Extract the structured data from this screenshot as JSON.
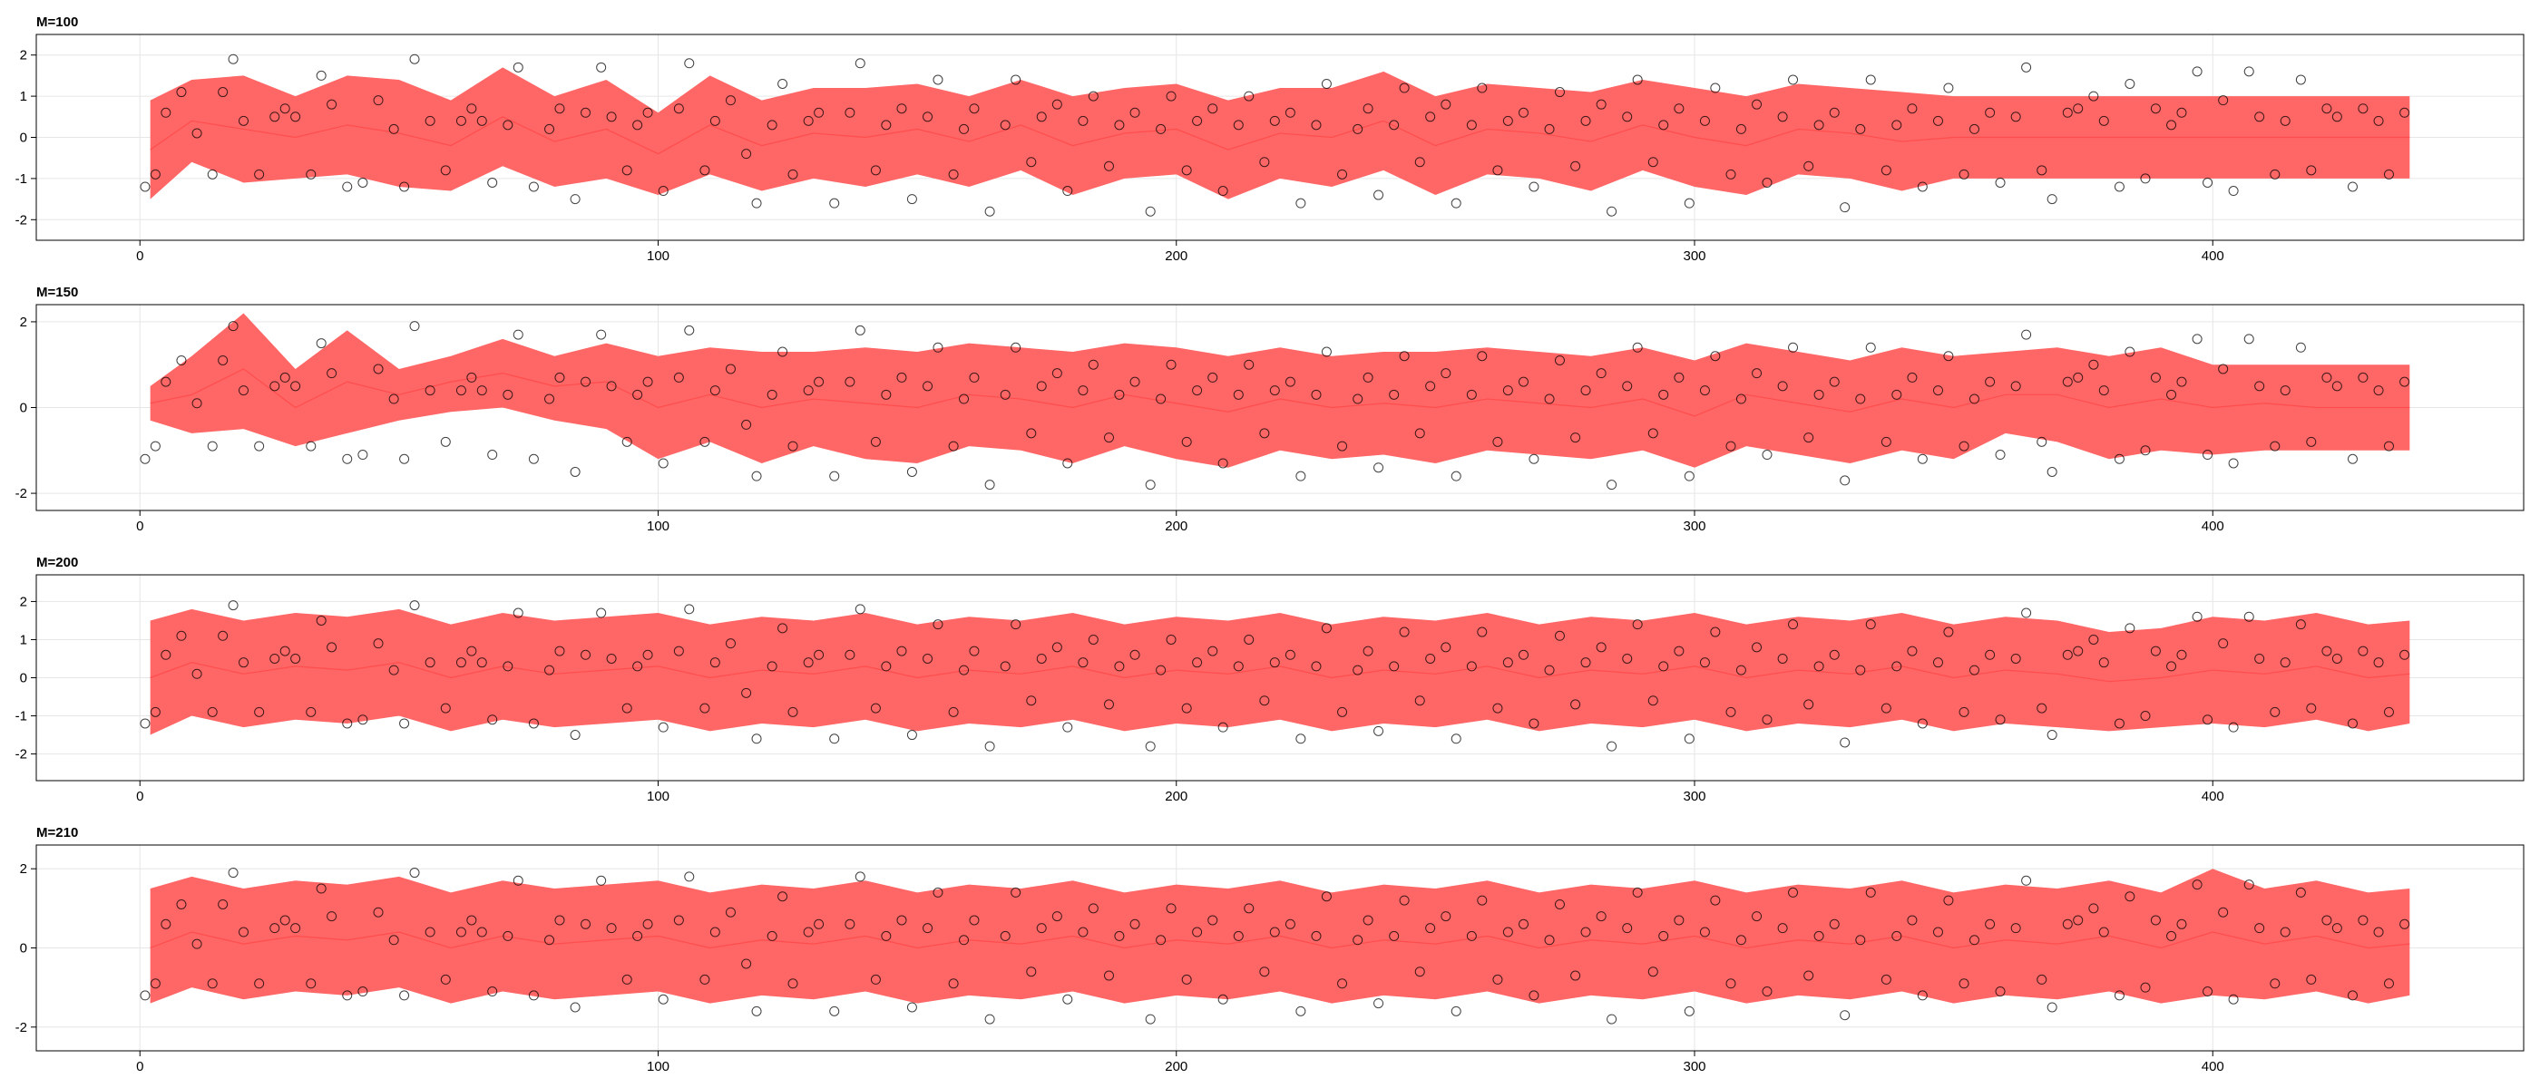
{
  "colors": {
    "band": "#ff6666",
    "points": "#000000",
    "grid": "#e6e6e6",
    "frame": "#000000"
  },
  "chart_data": [
    {
      "type": "area",
      "title": "M=100",
      "xlim": [
        -20,
        460
      ],
      "ylim": [
        -2.5,
        2.5
      ],
      "xticks": [
        0,
        100,
        200,
        300,
        400
      ],
      "xtick_labels": [
        "0",
        "100",
        "200",
        "300",
        "400"
      ],
      "yticks": [
        -2,
        -1,
        0,
        1,
        2
      ],
      "ytick_labels": [
        "-2",
        "-1",
        "0",
        "1",
        "2"
      ],
      "grid": true,
      "band": {
        "x": [
          2,
          10,
          20,
          30,
          40,
          50,
          60,
          70,
          80,
          90,
          100,
          110,
          120,
          130,
          140,
          150,
          160,
          170,
          180,
          190,
          200,
          210,
          220,
          230,
          240,
          250,
          260,
          270,
          280,
          290,
          300,
          310,
          320,
          330,
          340,
          350,
          360,
          370,
          380,
          390,
          400,
          410,
          420,
          430,
          438
        ],
        "center": [
          -0.3,
          0.4,
          0.2,
          0.0,
          0.3,
          0.1,
          -0.2,
          0.5,
          -0.1,
          0.2,
          -0.4,
          0.3,
          -0.2,
          0.1,
          0.0,
          0.2,
          -0.1,
          0.3,
          -0.2,
          0.1,
          0.2,
          -0.3,
          0.1,
          0.0,
          0.4,
          -0.2,
          0.2,
          0.1,
          -0.1,
          0.3,
          0.0,
          -0.2,
          0.2,
          0.1,
          -0.1,
          0.0,
          0.0,
          0.0,
          0.0,
          0.0,
          0.0,
          0.0,
          0.0,
          0.0,
          0.0
        ],
        "lower": [
          -1.5,
          -0.6,
          -1.1,
          -1.0,
          -0.9,
          -1.2,
          -1.3,
          -0.7,
          -1.2,
          -1.0,
          -1.4,
          -0.9,
          -1.3,
          -1.0,
          -1.2,
          -0.9,
          -1.2,
          -0.8,
          -1.4,
          -1.0,
          -0.9,
          -1.5,
          -1.0,
          -1.2,
          -0.8,
          -1.4,
          -0.9,
          -1.0,
          -1.3,
          -0.8,
          -1.2,
          -1.4,
          -0.9,
          -1.0,
          -1.3,
          -1.0,
          -1.0,
          -1.0,
          -1.0,
          -1.0,
          -1.0,
          -1.0,
          -1.0,
          -1.0,
          -1.0
        ],
        "upper": [
          0.9,
          1.4,
          1.5,
          1.0,
          1.5,
          1.4,
          0.9,
          1.7,
          1.0,
          1.4,
          0.6,
          1.5,
          0.9,
          1.2,
          1.2,
          1.3,
          1.0,
          1.4,
          1.0,
          1.2,
          1.3,
          0.9,
          1.2,
          1.2,
          1.6,
          1.0,
          1.3,
          1.2,
          1.1,
          1.4,
          1.2,
          1.0,
          1.3,
          1.2,
          1.1,
          1.0,
          1.0,
          1.0,
          1.0,
          1.0,
          1.0,
          1.0,
          1.0,
          1.0,
          1.0
        ]
      }
    },
    {
      "type": "area",
      "title": "M=150",
      "xlim": [
        -20,
        460
      ],
      "ylim": [
        -2.4,
        2.4
      ],
      "xticks": [
        0,
        100,
        200,
        300,
        400
      ],
      "xtick_labels": [
        "0",
        "100",
        "200",
        "300",
        "400"
      ],
      "yticks": [
        -2,
        0,
        2
      ],
      "ytick_labels": [
        "-2",
        "0",
        "2"
      ],
      "grid": true,
      "band": {
        "x": [
          2,
          10,
          20,
          30,
          40,
          50,
          60,
          70,
          80,
          90,
          100,
          110,
          120,
          130,
          140,
          150,
          160,
          170,
          180,
          190,
          200,
          210,
          220,
          230,
          240,
          250,
          260,
          270,
          280,
          290,
          300,
          310,
          320,
          330,
          340,
          350,
          360,
          370,
          380,
          390,
          400,
          410,
          420,
          430,
          438
        ],
        "center": [
          0.1,
          0.3,
          0.9,
          0.0,
          0.6,
          0.3,
          0.6,
          0.8,
          0.5,
          0.6,
          0.0,
          0.3,
          0.0,
          0.2,
          0.1,
          0.0,
          0.3,
          0.2,
          0.0,
          0.3,
          0.1,
          -0.1,
          0.2,
          0.0,
          0.1,
          0.0,
          0.2,
          0.1,
          0.0,
          0.2,
          -0.2,
          0.3,
          0.1,
          -0.1,
          0.2,
          0.0,
          0.3,
          0.3,
          0.0,
          0.2,
          0.0,
          0.1,
          0.0,
          0.0,
          0.0
        ],
        "lower": [
          -0.3,
          -0.6,
          -0.5,
          -0.9,
          -0.6,
          -0.3,
          -0.1,
          0.0,
          -0.3,
          -0.5,
          -1.2,
          -0.8,
          -1.3,
          -0.9,
          -1.2,
          -1.3,
          -0.9,
          -1.0,
          -1.3,
          -0.9,
          -1.2,
          -1.4,
          -1.0,
          -1.2,
          -1.1,
          -1.3,
          -1.0,
          -1.1,
          -1.2,
          -1.0,
          -1.4,
          -0.9,
          -1.1,
          -1.3,
          -1.0,
          -1.2,
          -0.6,
          -0.8,
          -1.2,
          -1.0,
          -1.1,
          -1.0,
          -1.0,
          -1.0,
          -1.0
        ],
        "upper": [
          0.5,
          1.2,
          2.2,
          0.9,
          1.8,
          0.9,
          1.2,
          1.6,
          1.2,
          1.5,
          1.2,
          1.4,
          1.3,
          1.3,
          1.4,
          1.3,
          1.5,
          1.4,
          1.3,
          1.5,
          1.4,
          1.2,
          1.4,
          1.2,
          1.3,
          1.3,
          1.4,
          1.3,
          1.2,
          1.4,
          1.1,
          1.5,
          1.3,
          1.1,
          1.4,
          1.2,
          1.3,
          1.4,
          1.2,
          1.4,
          1.0,
          1.0,
          1.0,
          1.0,
          1.0
        ]
      }
    },
    {
      "type": "area",
      "title": "M=200",
      "xlim": [
        -20,
        460
      ],
      "ylim": [
        -2.7,
        2.7
      ],
      "xticks": [
        0,
        100,
        200,
        300,
        400
      ],
      "xtick_labels": [
        "0",
        "100",
        "200",
        "300",
        "400"
      ],
      "yticks": [
        -2,
        -1,
        0,
        1,
        2
      ],
      "ytick_labels": [
        "-2",
        "-1",
        "0",
        "1",
        "2"
      ],
      "grid": true,
      "band": {
        "x": [
          2,
          10,
          20,
          30,
          40,
          50,
          60,
          70,
          80,
          90,
          100,
          110,
          120,
          130,
          140,
          150,
          160,
          170,
          180,
          190,
          200,
          210,
          220,
          230,
          240,
          250,
          260,
          270,
          280,
          290,
          300,
          310,
          320,
          330,
          340,
          350,
          360,
          370,
          380,
          390,
          400,
          410,
          420,
          430,
          438
        ],
        "center": [
          0.0,
          0.4,
          0.1,
          0.3,
          0.2,
          0.4,
          0.0,
          0.3,
          0.1,
          0.2,
          0.3,
          0.0,
          0.2,
          0.1,
          0.3,
          0.0,
          0.2,
          0.1,
          0.3,
          0.0,
          0.2,
          0.1,
          0.3,
          0.0,
          0.2,
          0.1,
          0.3,
          0.0,
          0.2,
          0.1,
          0.3,
          0.0,
          0.2,
          0.1,
          0.3,
          0.0,
          0.2,
          0.1,
          -0.1,
          0.0,
          0.2,
          0.1,
          0.3,
          0.0,
          0.1
        ],
        "lower": [
          -1.5,
          -1.0,
          -1.3,
          -1.1,
          -1.2,
          -1.0,
          -1.4,
          -1.1,
          -1.3,
          -1.2,
          -1.1,
          -1.4,
          -1.2,
          -1.3,
          -1.1,
          -1.4,
          -1.2,
          -1.3,
          -1.1,
          -1.4,
          -1.2,
          -1.3,
          -1.1,
          -1.4,
          -1.2,
          -1.3,
          -1.1,
          -1.4,
          -1.2,
          -1.3,
          -1.1,
          -1.4,
          -1.2,
          -1.3,
          -1.1,
          -1.4,
          -1.2,
          -1.3,
          -1.4,
          -1.3,
          -1.2,
          -1.3,
          -1.1,
          -1.4,
          -1.2
        ],
        "upper": [
          1.5,
          1.8,
          1.5,
          1.7,
          1.6,
          1.8,
          1.4,
          1.7,
          1.5,
          1.6,
          1.7,
          1.4,
          1.6,
          1.5,
          1.7,
          1.4,
          1.6,
          1.5,
          1.7,
          1.4,
          1.6,
          1.5,
          1.7,
          1.4,
          1.6,
          1.5,
          1.7,
          1.4,
          1.6,
          1.5,
          1.7,
          1.4,
          1.6,
          1.5,
          1.7,
          1.4,
          1.6,
          1.5,
          1.2,
          1.3,
          1.6,
          1.5,
          1.7,
          1.4,
          1.5
        ]
      }
    },
    {
      "type": "area",
      "title": "M=210",
      "xlim": [
        -20,
        460
      ],
      "ylim": [
        -2.6,
        2.6
      ],
      "xticks": [
        0,
        100,
        200,
        300,
        400
      ],
      "xtick_labels": [
        "0",
        "100",
        "200",
        "300",
        "400"
      ],
      "yticks": [
        -2,
        0,
        2
      ],
      "ytick_labels": [
        "-2",
        "0",
        "2"
      ],
      "grid": true,
      "band": {
        "x": [
          2,
          10,
          20,
          30,
          40,
          50,
          60,
          70,
          80,
          90,
          100,
          110,
          120,
          130,
          140,
          150,
          160,
          170,
          180,
          190,
          200,
          210,
          220,
          230,
          240,
          250,
          260,
          270,
          280,
          290,
          300,
          310,
          320,
          330,
          340,
          350,
          360,
          370,
          380,
          390,
          400,
          410,
          420,
          430,
          438
        ],
        "center": [
          0.0,
          0.4,
          0.1,
          0.3,
          0.2,
          0.4,
          0.0,
          0.3,
          0.1,
          0.2,
          0.3,
          0.0,
          0.2,
          0.1,
          0.3,
          0.0,
          0.2,
          0.1,
          0.3,
          0.0,
          0.2,
          0.1,
          0.3,
          0.0,
          0.2,
          0.1,
          0.3,
          0.0,
          0.2,
          0.1,
          0.3,
          0.0,
          0.2,
          0.1,
          0.3,
          0.0,
          0.2,
          0.1,
          0.3,
          0.0,
          0.4,
          0.1,
          0.3,
          0.0,
          0.1
        ],
        "lower": [
          -1.4,
          -1.0,
          -1.3,
          -1.1,
          -1.2,
          -1.0,
          -1.4,
          -1.1,
          -1.3,
          -1.2,
          -1.1,
          -1.4,
          -1.2,
          -1.3,
          -1.1,
          -1.4,
          -1.2,
          -1.3,
          -1.1,
          -1.4,
          -1.2,
          -1.3,
          -1.1,
          -1.4,
          -1.2,
          -1.3,
          -1.1,
          -1.4,
          -1.2,
          -1.3,
          -1.1,
          -1.4,
          -1.2,
          -1.3,
          -1.1,
          -1.4,
          -1.2,
          -1.3,
          -1.1,
          -1.4,
          -1.2,
          -1.3,
          -1.1,
          -1.4,
          -1.2
        ],
        "upper": [
          1.5,
          1.8,
          1.5,
          1.7,
          1.6,
          1.8,
          1.4,
          1.7,
          1.5,
          1.6,
          1.7,
          1.4,
          1.6,
          1.5,
          1.7,
          1.4,
          1.6,
          1.5,
          1.7,
          1.4,
          1.6,
          1.5,
          1.7,
          1.4,
          1.6,
          1.5,
          1.7,
          1.4,
          1.6,
          1.5,
          1.7,
          1.4,
          1.6,
          1.5,
          1.7,
          1.4,
          1.6,
          1.5,
          1.7,
          1.4,
          2.0,
          1.5,
          1.7,
          1.4,
          1.5
        ]
      }
    }
  ],
  "observations": {
    "x": [
      1,
      3,
      5,
      8,
      11,
      14,
      16,
      18,
      20,
      23,
      26,
      28,
      30,
      33,
      35,
      37,
      40,
      43,
      46,
      49,
      51,
      53,
      56,
      59,
      62,
      64,
      66,
      68,
      71,
      73,
      76,
      79,
      81,
      84,
      86,
      89,
      91,
      94,
      96,
      98,
      101,
      104,
      106,
      109,
      111,
      114,
      117,
      119,
      122,
      124,
      126,
      129,
      131,
      134,
      137,
      139,
      142,
      144,
      147,
      149,
      152,
      154,
      157,
      159,
      161,
      164,
      167,
      169,
      172,
      174,
      177,
      179,
      182,
      184,
      187,
      189,
      192,
      195,
      197,
      199,
      202,
      204,
      207,
      209,
      212,
      214,
      217,
      219,
      222,
      224,
      227,
      229,
      232,
      235,
      237,
      239,
      242,
      244,
      247,
      249,
      252,
      254,
      257,
      259,
      262,
      264,
      267,
      269,
      272,
      274,
      277,
      279,
      282,
      284,
      287,
      289,
      292,
      294,
      297,
      299,
      302,
      304,
      307,
      309,
      312,
      314,
      317,
      319,
      322,
      324,
      327,
      329,
      332,
      334,
      337,
      339,
      342,
      344,
      347,
      349,
      352,
      354,
      357,
      359,
      362,
      364,
      367,
      369,
      372,
      374,
      377,
      379,
      382,
      384,
      387,
      389,
      392,
      394,
      397,
      399,
      402,
      404,
      407,
      409,
      412,
      414,
      417,
      419,
      422,
      424,
      427,
      429,
      432,
      434,
      437
    ],
    "y": [
      -1.2,
      -0.9,
      0.6,
      1.1,
      0.1,
      -0.9,
      1.1,
      1.9,
      0.4,
      -0.9,
      0.5,
      0.7,
      0.5,
      -0.9,
      1.5,
      0.8,
      -1.2,
      -1.1,
      0.9,
      0.2,
      -1.2,
      1.9,
      0.4,
      -0.8,
      0.4,
      0.7,
      0.4,
      -1.1,
      0.3,
      1.7,
      -1.2,
      0.2,
      0.7,
      -1.5,
      0.6,
      1.7,
      0.5,
      -0.8,
      0.3,
      0.6,
      -1.3,
      0.7,
      1.8,
      -0.8,
      0.4,
      0.9,
      -0.4,
      -1.6,
      0.3,
      1.3,
      -0.9,
      0.4,
      0.6,
      -1.6,
      0.6,
      1.8,
      -0.8,
      0.3,
      0.7,
      -1.5,
      0.5,
      1.4,
      -0.9,
      0.2,
      0.7,
      -1.8,
      0.3,
      1.4,
      -0.6,
      0.5,
      0.8,
      -1.3,
      0.4,
      1.0,
      -0.7,
      0.3,
      0.6,
      -1.8,
      0.2,
      1.0,
      -0.8,
      0.4,
      0.7,
      -1.3,
      0.3,
      1.0,
      -0.6,
      0.4,
      0.6,
      -1.6,
      0.3,
      1.3,
      -0.9,
      0.2,
      0.7,
      -1.4,
      0.3,
      1.2,
      -0.6,
      0.5,
      0.8,
      -1.6,
      0.3,
      1.2,
      -0.8,
      0.4,
      0.6,
      -1.2,
      0.2,
      1.1,
      -0.7,
      0.4,
      0.8,
      -1.8,
      0.5,
      1.4,
      -0.6,
      0.3,
      0.7,
      -1.6,
      0.4,
      1.2,
      -0.9,
      0.2,
      0.8,
      -1.1,
      0.5,
      1.4,
      -0.7,
      0.3,
      0.6,
      -1.7,
      0.2,
      1.4,
      -0.8,
      0.3,
      0.7,
      -1.2,
      0.4,
      1.2,
      -0.9,
      0.2,
      0.6,
      -1.1,
      0.5,
      1.7,
      -0.8,
      -1.5,
      0.6,
      0.7,
      1.0,
      0.4,
      -1.2,
      1.3,
      -1.0,
      0.7,
      0.3,
      0.6,
      1.6,
      -1.1,
      0.9,
      -1.3,
      1.6,
      0.5,
      -0.9,
      0.4,
      1.4,
      -0.8,
      0.7,
      0.5,
      -1.2,
      0.7,
      0.4,
      -0.9,
      0.6
    ]
  }
}
